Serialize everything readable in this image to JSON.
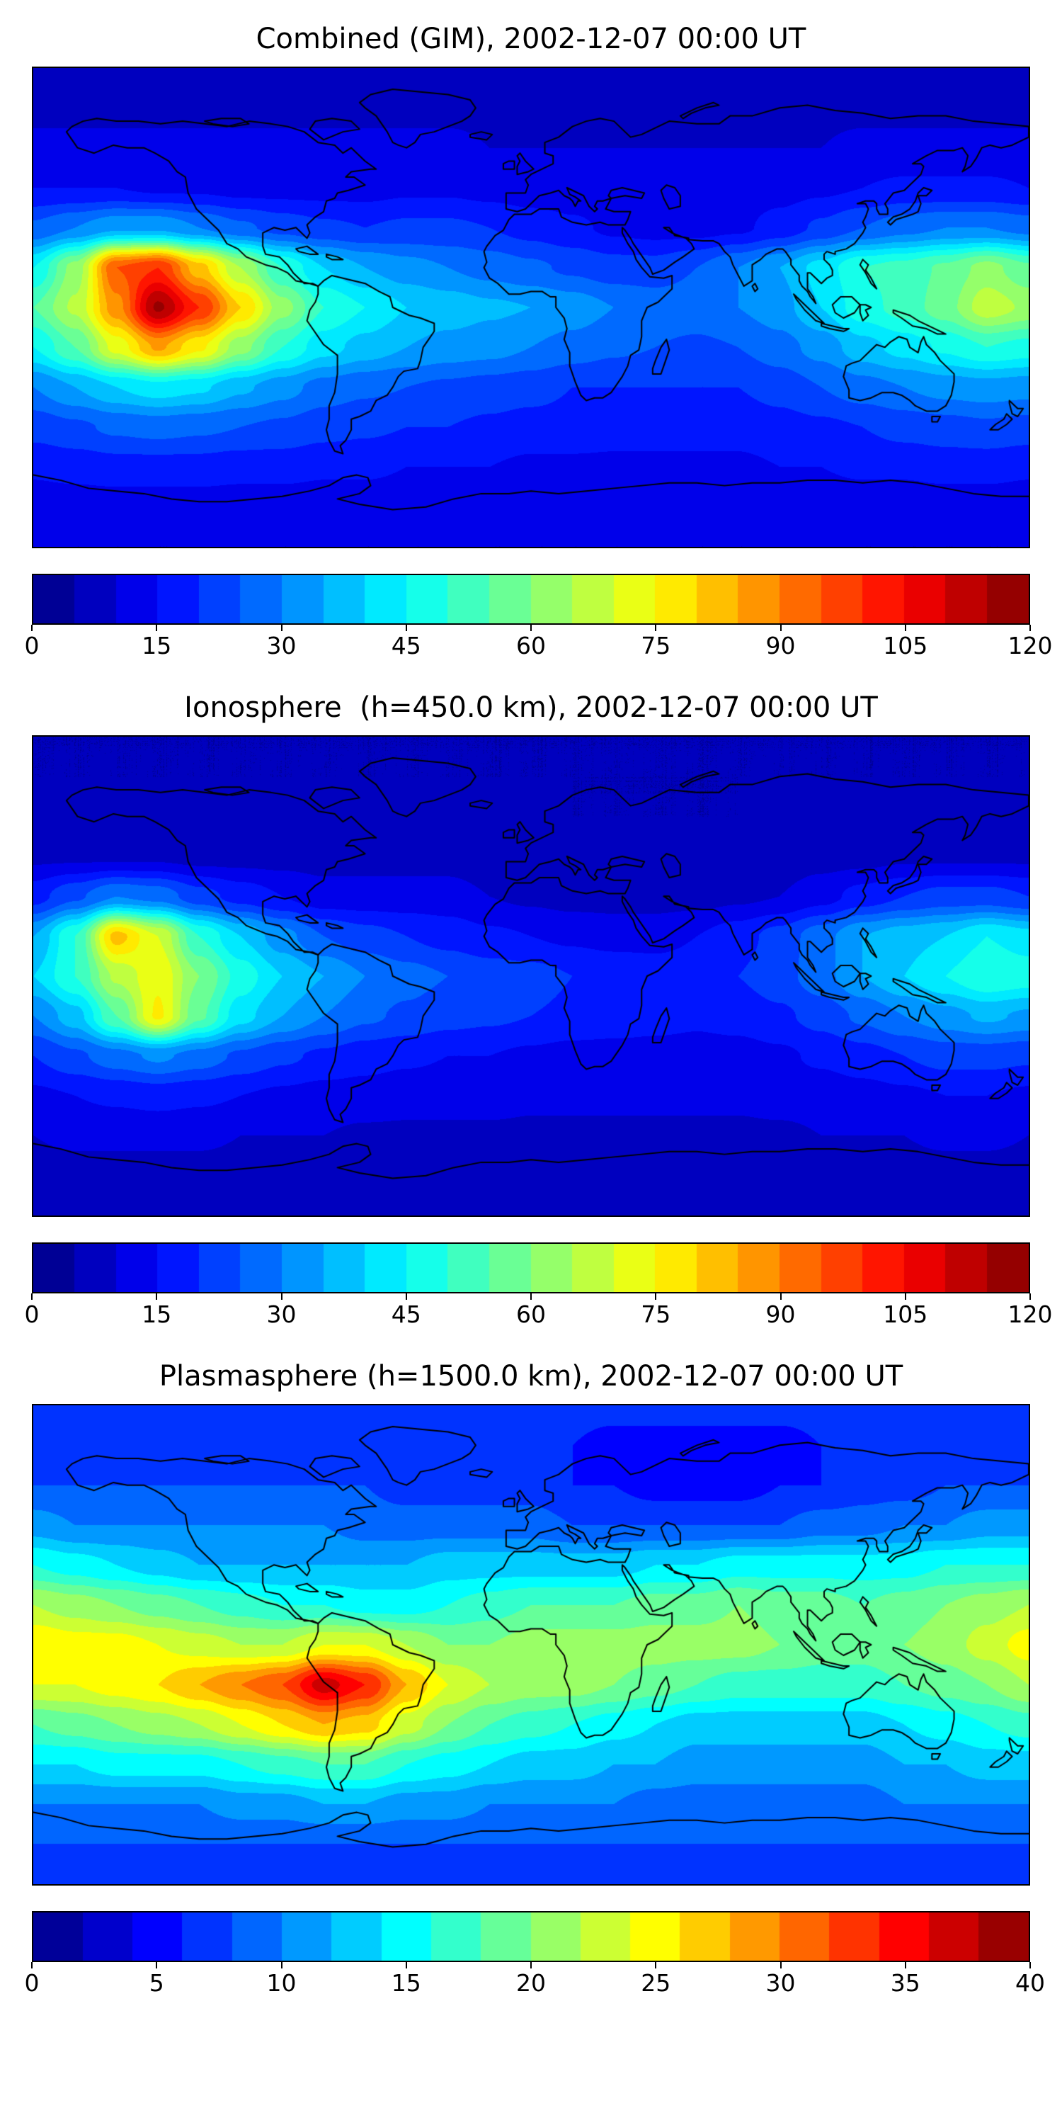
{
  "figure": {
    "panel_count": 3,
    "background_color": "#ffffff",
    "coastline_color": "#000000"
  },
  "chart_data": [
    {
      "type": "heatmap",
      "title": "Combined (GIM), 2002-12-07 00:00 UT",
      "colormap": "jet",
      "projection": "equirectangular",
      "lon_range": [
        -180,
        180
      ],
      "lat_range": [
        -90,
        90
      ],
      "vmin": 0,
      "vmax": 120,
      "contour_step": 5,
      "colorbar_ticks": [
        0,
        15,
        30,
        45,
        60,
        75,
        90,
        105,
        120
      ],
      "lon": [
        -180,
        -165,
        -150,
        -135,
        -120,
        -105,
        -90,
        -75,
        -60,
        -45,
        -30,
        -15,
        0,
        15,
        30,
        45,
        60,
        75,
        90,
        105,
        120,
        135,
        150,
        165,
        180
      ],
      "lat": [
        90,
        75,
        60,
        45,
        30,
        15,
        0,
        -15,
        -30,
        -45,
        -60,
        -75,
        -90
      ],
      "values": [
        [
          8,
          8,
          8,
          8,
          8,
          8,
          8,
          8,
          8,
          8,
          8,
          8,
          8,
          8,
          8,
          8,
          8,
          8,
          8,
          8,
          8,
          8,
          8,
          8,
          8
        ],
        [
          9,
          9,
          9,
          9,
          9,
          9,
          9,
          9,
          9,
          9,
          9,
          9,
          8,
          8,
          8,
          8,
          8,
          8,
          8,
          9,
          9,
          9,
          9,
          9,
          9
        ],
        [
          11,
          11,
          11,
          11,
          11,
          11,
          11,
          11,
          11,
          11,
          11,
          10,
          10,
          10,
          10,
          10,
          10,
          10,
          10,
          10,
          11,
          11,
          11,
          11,
          11
        ],
        [
          15,
          15,
          15,
          14,
          14,
          13,
          13,
          13,
          13,
          14,
          14,
          13,
          12,
          12,
          11,
          11,
          11,
          12,
          13,
          14,
          15,
          16,
          16,
          16,
          15
        ],
        [
          26,
          30,
          34,
          34,
          30,
          26,
          23,
          21,
          20,
          21,
          21,
          20,
          18,
          16,
          14,
          13,
          13,
          14,
          17,
          21,
          25,
          28,
          30,
          30,
          28
        ],
        [
          45,
          62,
          95,
          100,
          82,
          65,
          50,
          40,
          35,
          32,
          30,
          28,
          26,
          24,
          22,
          22,
          25,
          30,
          35,
          42,
          50,
          52,
          56,
          62,
          56
        ],
        [
          55,
          66,
          88,
          116,
          100,
          80,
          62,
          50,
          45,
          40,
          38,
          36,
          35,
          33,
          30,
          28,
          28,
          30,
          33,
          40,
          48,
          52,
          58,
          68,
          64
        ],
        [
          45,
          55,
          72,
          86,
          76,
          62,
          50,
          42,
          38,
          35,
          33,
          32,
          30,
          28,
          26,
          25,
          24,
          25,
          28,
          32,
          38,
          42,
          46,
          50,
          48
        ],
        [
          30,
          35,
          40,
          43,
          41,
          36,
          32,
          28,
          26,
          25,
          24,
          23,
          22,
          20,
          20,
          20,
          20,
          20,
          22,
          25,
          28,
          30,
          32,
          33,
          32
        ],
        [
          22,
          24,
          26,
          27,
          26,
          25,
          24,
          22,
          21,
          20,
          20,
          19,
          18,
          18,
          17,
          17,
          17,
          17,
          18,
          19,
          20,
          22,
          23,
          24,
          23
        ],
        [
          16,
          17,
          18,
          18,
          18,
          17,
          17,
          16,
          16,
          15,
          15,
          15,
          14,
          14,
          14,
          14,
          14,
          14,
          15,
          15,
          16,
          16,
          17,
          17,
          16
        ],
        [
          12,
          12,
          12,
          12,
          12,
          12,
          12,
          12,
          12,
          12,
          12,
          12,
          12,
          12,
          12,
          12,
          12,
          12,
          12,
          12,
          12,
          12,
          12,
          12,
          12
        ],
        [
          10,
          10,
          10,
          10,
          10,
          10,
          10,
          10,
          10,
          10,
          10,
          10,
          10,
          10,
          10,
          10,
          10,
          10,
          10,
          10,
          10,
          10,
          10,
          10,
          10
        ]
      ]
    },
    {
      "type": "heatmap",
      "title": "Ionosphere  (h=450.0 km), 2002-12-07 00:00 UT",
      "colormap": "jet",
      "projection": "equirectangular",
      "lon_range": [
        -180,
        180
      ],
      "lat_range": [
        -90,
        90
      ],
      "vmin": 0,
      "vmax": 120,
      "contour_step": 5,
      "colorbar_ticks": [
        0,
        15,
        30,
        45,
        60,
        75,
        90,
        105,
        120
      ],
      "lon": [
        -180,
        -165,
        -150,
        -135,
        -120,
        -105,
        -90,
        -75,
        -60,
        -45,
        -30,
        -15,
        0,
        15,
        30,
        45,
        60,
        75,
        90,
        105,
        120,
        135,
        150,
        165,
        180
      ],
      "lat": [
        90,
        75,
        60,
        45,
        30,
        15,
        0,
        -15,
        -30,
        -45,
        -60,
        -75,
        -90
      ],
      "values": [
        [
          5,
          5,
          5,
          5,
          5,
          5,
          5,
          5,
          5,
          5,
          5,
          5,
          5,
          5,
          5,
          5,
          5,
          5,
          5,
          5,
          5,
          5,
          5,
          5,
          5
        ],
        [
          5,
          5,
          5,
          5,
          5,
          5,
          5,
          5,
          5,
          5,
          5,
          5,
          5,
          5,
          5,
          5,
          5,
          5,
          5,
          5,
          5,
          5,
          5,
          5,
          5
        ],
        [
          6,
          6,
          6,
          6,
          6,
          6,
          6,
          6,
          6,
          6,
          6,
          6,
          6,
          5,
          5,
          5,
          5,
          5,
          6,
          6,
          6,
          6,
          6,
          6,
          6
        ],
        [
          9,
          9,
          9,
          9,
          8,
          8,
          8,
          8,
          8,
          8,
          8,
          7,
          7,
          7,
          6,
          6,
          6,
          7,
          7,
          8,
          8,
          9,
          9,
          9,
          9
        ],
        [
          18,
          24,
          30,
          28,
          22,
          18,
          15,
          12,
          12,
          12,
          12,
          10,
          9,
          8,
          8,
          8,
          8,
          9,
          10,
          13,
          17,
          20,
          22,
          22,
          20
        ],
        [
          35,
          50,
          82,
          70,
          50,
          40,
          32,
          25,
          22,
          20,
          18,
          16,
          15,
          14,
          13,
          13,
          15,
          18,
          22,
          28,
          35,
          38,
          40,
          45,
          42
        ],
        [
          40,
          50,
          66,
          74,
          60,
          48,
          40,
          35,
          30,
          27,
          25,
          23,
          22,
          20,
          19,
          18,
          18,
          20,
          23,
          28,
          35,
          40,
          45,
          50,
          48
        ],
        [
          30,
          38,
          55,
          76,
          56,
          42,
          35,
          30,
          26,
          24,
          22,
          21,
          20,
          19,
          18,
          17,
          16,
          17,
          19,
          22,
          26,
          30,
          33,
          36,
          34
        ],
        [
          20,
          24,
          28,
          31,
          28,
          24,
          21,
          19,
          17,
          16,
          15,
          15,
          14,
          13,
          13,
          13,
          13,
          13,
          14,
          16,
          18,
          20,
          22,
          22,
          21
        ],
        [
          14,
          15,
          16,
          17,
          16,
          15,
          14,
          13,
          13,
          12,
          12,
          12,
          11,
          11,
          11,
          11,
          11,
          11,
          12,
          12,
          13,
          14,
          15,
          15,
          14
        ],
        [
          10,
          11,
          11,
          11,
          11,
          10,
          10,
          10,
          9,
          9,
          9,
          9,
          9,
          9,
          9,
          9,
          9,
          9,
          9,
          10,
          10,
          10,
          11,
          11,
          10
        ],
        [
          8,
          8,
          8,
          8,
          8,
          8,
          8,
          8,
          8,
          8,
          8,
          8,
          8,
          8,
          8,
          8,
          8,
          8,
          8,
          8,
          8,
          8,
          8,
          8,
          8
        ],
        [
          7,
          7,
          7,
          7,
          7,
          7,
          7,
          7,
          7,
          7,
          7,
          7,
          7,
          7,
          7,
          7,
          7,
          7,
          7,
          7,
          7,
          7,
          7,
          7,
          7
        ]
      ]
    },
    {
      "type": "heatmap",
      "title": "Plasmasphere (h=1500.0 km), 2002-12-07 00:00 UT",
      "colormap": "jet",
      "projection": "equirectangular",
      "lon_range": [
        -180,
        180
      ],
      "lat_range": [
        -90,
        90
      ],
      "vmin": 0,
      "vmax": 40,
      "contour_step": 2,
      "colorbar_ticks": [
        0,
        5,
        10,
        15,
        20,
        25,
        30,
        35,
        40
      ],
      "lon": [
        -180,
        -165,
        -150,
        -135,
        -120,
        -105,
        -90,
        -75,
        -60,
        -45,
        -30,
        -15,
        0,
        15,
        30,
        45,
        60,
        75,
        90,
        105,
        120,
        135,
        150,
        165,
        180
      ],
      "lat": [
        90,
        75,
        60,
        45,
        30,
        15,
        0,
        -15,
        -30,
        -45,
        -60,
        -75,
        -90
      ],
      "values": [
        [
          7,
          7,
          7,
          7,
          7,
          7,
          7,
          7,
          7,
          7,
          7,
          7,
          7,
          7,
          7,
          7,
          7,
          7,
          7,
          7,
          7,
          7,
          7,
          7,
          7
        ],
        [
          7,
          7,
          7,
          7,
          7,
          7,
          7,
          7,
          7,
          7,
          7,
          6,
          6,
          6,
          5,
          5,
          5,
          5,
          5,
          6,
          6,
          6,
          7,
          7,
          7
        ],
        [
          8,
          8,
          8,
          8,
          8,
          8,
          8,
          8,
          8,
          7,
          7,
          7,
          7,
          6,
          6,
          5,
          5,
          5,
          6,
          6,
          7,
          7,
          8,
          8,
          8
        ],
        [
          11,
          10,
          10,
          10,
          10,
          10,
          10,
          10,
          9,
          9,
          9,
          9,
          9,
          8,
          8,
          8,
          8,
          8,
          8,
          9,
          9,
          10,
          10,
          11,
          11
        ],
        [
          16,
          15,
          14,
          13,
          12,
          12,
          12,
          12,
          12,
          12,
          13,
          13,
          13,
          13,
          13,
          14,
          14,
          15,
          15,
          15,
          15,
          15,
          16,
          16,
          16
        ],
        [
          22,
          21,
          20,
          19,
          18,
          17,
          16,
          16,
          15,
          15,
          16,
          17,
          18,
          18,
          18,
          19,
          19,
          20,
          19,
          19,
          18,
          19,
          20,
          21,
          22
        ],
        [
          26,
          25,
          25,
          24,
          23,
          22,
          22,
          24,
          24,
          22,
          20,
          20,
          21,
          21,
          21,
          21,
          21,
          21,
          20,
          19,
          19,
          20,
          21,
          23,
          25
        ],
        [
          24,
          24,
          25,
          26,
          28,
          30,
          32,
          37,
          34,
          28,
          24,
          22,
          21,
          21,
          20,
          19,
          18,
          17,
          17,
          17,
          17,
          18,
          19,
          20,
          22
        ],
        [
          18,
          19,
          20,
          21,
          22,
          24,
          26,
          28,
          27,
          23,
          20,
          18,
          17,
          16,
          15,
          14,
          13,
          13,
          13,
          13,
          13,
          14,
          15,
          16,
          17
        ],
        [
          14,
          14,
          15,
          15,
          15,
          16,
          17,
          18,
          18,
          16,
          15,
          14,
          13,
          13,
          12,
          12,
          11,
          11,
          11,
          11,
          11,
          12,
          12,
          13,
          13
        ],
        [
          10,
          10,
          10,
          10,
          10,
          11,
          11,
          12,
          12,
          11,
          11,
          10,
          10,
          10,
          10,
          9,
          9,
          9,
          9,
          9,
          9,
          10,
          10,
          10,
          10
        ],
        [
          8,
          8,
          8,
          8,
          8,
          8,
          8,
          8,
          8,
          8,
          8,
          8,
          8,
          8,
          8,
          8,
          8,
          8,
          8,
          8,
          8,
          8,
          8,
          8,
          8
        ],
        [
          7,
          7,
          7,
          7,
          7,
          7,
          7,
          7,
          7,
          7,
          7,
          7,
          7,
          7,
          7,
          7,
          7,
          7,
          7,
          7,
          7,
          7,
          7,
          7,
          7
        ]
      ]
    }
  ]
}
